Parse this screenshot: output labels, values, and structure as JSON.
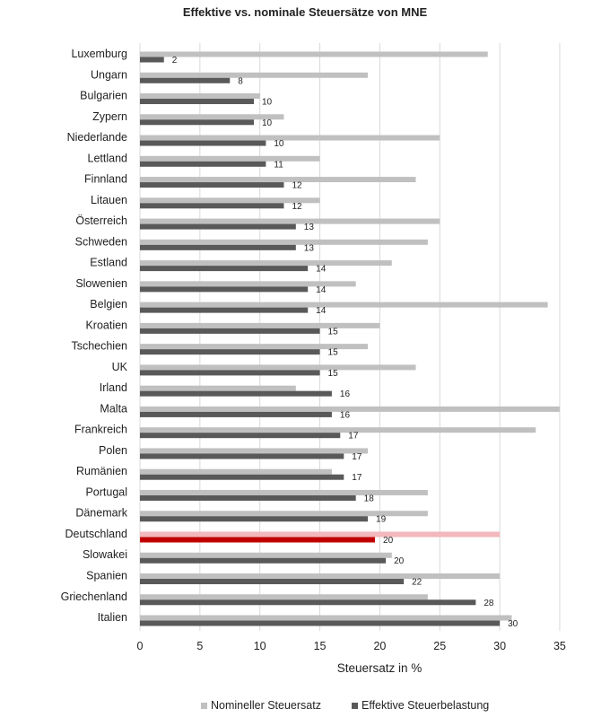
{
  "chart_data": {
    "type": "bar",
    "orientation": "horizontal",
    "title": "Effektive vs. nominale Steuersätze von MNE",
    "xlabel": "Steuersatz in %",
    "ylabel": "",
    "xlim": [
      0,
      35
    ],
    "xticks": [
      0,
      5,
      10,
      15,
      20,
      25,
      30,
      35
    ],
    "grid": "vertical",
    "legend_position": "bottom",
    "categories": [
      "Luxemburg",
      "Ungarn",
      "Bulgarien",
      "Zypern",
      "Niederlande",
      "Lettland",
      "Finnland",
      "Litauen",
      "Österreich",
      "Schweden",
      "Estland",
      "Slowenien",
      "Belgien",
      "Kroatien",
      "Tschechien",
      "UK",
      "Irland",
      "Malta",
      "Frankreich",
      "Polen",
      "Rumänien",
      "Portugal",
      "Dänemark",
      "Deutschland",
      "Slowakei",
      "Spanien",
      "Griechenland",
      "Italien"
    ],
    "highlight_category": "Deutschland",
    "series": [
      {
        "name": "Nomineller Steuersatz",
        "color": "#c0c0c0",
        "highlight_color": "#f2b8bb",
        "values": [
          29,
          19,
          10,
          12,
          25,
          15,
          23,
          15,
          25,
          24,
          21,
          18,
          34,
          20,
          19,
          23,
          13,
          35,
          33,
          19,
          16,
          24,
          24,
          30,
          21,
          30,
          24,
          31
        ]
      },
      {
        "name": "Effektive Steuerbelastung",
        "color": "#595959",
        "highlight_color": "#c00000",
        "values": [
          2,
          7.5,
          9.5,
          9.5,
          10.5,
          10.5,
          12,
          12,
          13,
          13,
          14,
          14,
          14,
          15,
          15,
          15,
          16,
          16,
          16.7,
          17,
          17,
          18,
          19,
          19.6,
          20.5,
          22,
          28,
          30
        ],
        "labels": [
          "2",
          "8",
          "10",
          "10",
          "10",
          "11",
          "12",
          "12",
          "13",
          "13",
          "14",
          "14",
          "14",
          "15",
          "15",
          "15",
          "16",
          "16",
          "17",
          "17",
          "17",
          "18",
          "19",
          "20",
          "20",
          "22",
          "28",
          "30"
        ]
      }
    ]
  }
}
